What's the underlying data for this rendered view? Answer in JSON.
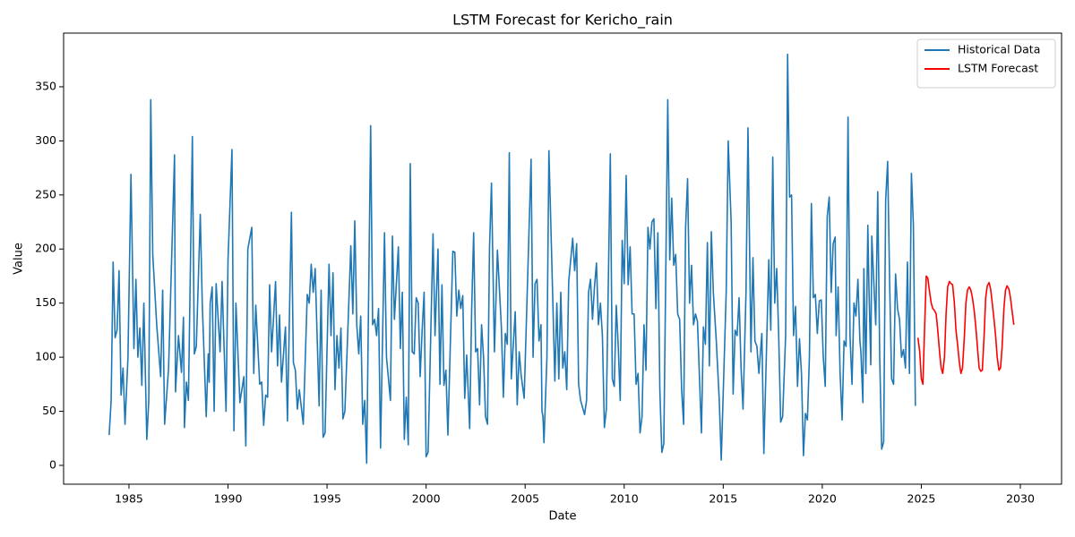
{
  "chart_data": {
    "type": "line",
    "title": "LSTM Forecast for Kericho_rain",
    "x_label": "Date",
    "y_label": "Value",
    "xlim": [
      1981.7,
      2032.08
    ],
    "ylim": [
      -17.4,
      399.6
    ],
    "xticks": [
      1985,
      1990,
      1995,
      2000,
      2005,
      2010,
      2015,
      2020,
      2025,
      2030
    ],
    "yticks": [
      0,
      50,
      100,
      150,
      200,
      250,
      300,
      350
    ],
    "grid": false,
    "legend": "upper right",
    "series": [
      {
        "name": "Historical Data",
        "color": "#1f77b4",
        "x": [
          1984.0,
          1984.1,
          1984.2,
          1984.3,
          1984.4,
          1984.5,
          1984.6,
          1984.7,
          1984.8,
          1984.95,
          1985.1,
          1985.25,
          1985.35,
          1985.45,
          1985.55,
          1985.65,
          1985.75,
          1985.9,
          1986.0,
          1986.1,
          1986.2,
          1986.4,
          1986.6,
          1986.7,
          1986.8,
          1987.0,
          1987.3,
          1987.35,
          1987.5,
          1987.65,
          1987.75,
          1987.8,
          1987.9,
          1988.0,
          1988.2,
          1988.3,
          1988.4,
          1988.6,
          1988.7,
          1988.9,
          1989.0,
          1989.05,
          1989.1,
          1989.2,
          1989.3,
          1989.4,
          1989.6,
          1989.7,
          1989.9,
          1990.0,
          1990.2,
          1990.3,
          1990.4,
          1990.6,
          1990.8,
          1990.9,
          1991.0,
          1991.2,
          1991.3,
          1991.4,
          1991.6,
          1991.7,
          1991.8,
          1991.9,
          1992.0,
          1992.1,
          1992.2,
          1992.4,
          1992.5,
          1992.6,
          1992.7,
          1992.9,
          1993.0,
          1993.2,
          1993.3,
          1993.4,
          1993.5,
          1993.6,
          1993.8,
          1994.0,
          1994.1,
          1994.2,
          1994.3,
          1994.4,
          1994.6,
          1994.7,
          1994.8,
          1994.9,
          1995.1,
          1995.2,
          1995.3,
          1995.4,
          1995.5,
          1995.6,
          1995.7,
          1995.8,
          1995.9,
          1996.0,
          1996.2,
          1996.3,
          1996.4,
          1996.5,
          1996.6,
          1996.7,
          1996.8,
          1996.9,
          1997.0,
          1997.2,
          1997.3,
          1997.4,
          1997.5,
          1997.6,
          1997.7,
          1997.9,
          1998.0,
          1998.2,
          1998.3,
          1998.4,
          1998.6,
          1998.7,
          1998.8,
          1998.9,
          1999.0,
          1999.1,
          1999.2,
          1999.3,
          1999.4,
          1999.5,
          1999.6,
          1999.7,
          1999.8,
          1999.9,
          2000.0,
          2000.1,
          2000.35,
          2000.45,
          2000.6,
          2000.7,
          2000.8,
          2000.9,
          2001.0,
          2001.1,
          2001.35,
          2001.45,
          2001.55,
          2001.65,
          2001.75,
          2001.85,
          2001.95,
          2002.05,
          2002.2,
          2002.3,
          2002.4,
          2002.5,
          2002.6,
          2002.7,
          2002.8,
          2002.9,
          2003.0,
          2003.1,
          2003.2,
          2003.3,
          2003.45,
          2003.6,
          2003.8,
          2003.9,
          2004.0,
          2004.1,
          2004.2,
          2004.3,
          2004.5,
          2004.6,
          2004.7,
          2004.8,
          2004.95,
          2005.3,
          2005.4,
          2005.5,
          2005.6,
          2005.7,
          2005.8,
          2005.85,
          2005.9,
          2005.95,
          2006.1,
          2006.2,
          2006.4,
          2006.5,
          2006.6,
          2006.7,
          2006.8,
          2006.9,
          2007.0,
          2007.1,
          2007.2,
          2007.4,
          2007.5,
          2007.6,
          2007.7,
          2007.8,
          2008.0,
          2008.1,
          2008.2,
          2008.3,
          2008.4,
          2008.5,
          2008.6,
          2008.7,
          2008.8,
          2008.9,
          2009.0,
          2009.1,
          2009.3,
          2009.4,
          2009.5,
          2009.6,
          2009.7,
          2009.8,
          2009.9,
          2010.0,
          2010.1,
          2010.2,
          2010.3,
          2010.4,
          2010.5,
          2010.6,
          2010.7,
          2010.8,
          2010.9,
          2011.0,
          2011.1,
          2011.2,
          2011.3,
          2011.4,
          2011.5,
          2011.6,
          2011.7,
          2011.8,
          2011.9,
          2012.0,
          2012.2,
          2012.3,
          2012.4,
          2012.5,
          2012.6,
          2012.7,
          2012.8,
          2012.9,
          2013.0,
          2013.1,
          2013.2,
          2013.3,
          2013.4,
          2013.5,
          2013.6,
          2013.7,
          2013.9,
          2014.0,
          2014.1,
          2014.2,
          2014.3,
          2014.4,
          2014.5,
          2014.65,
          2014.8,
          2014.9,
          2015.15,
          2015.25,
          2015.4,
          2015.5,
          2015.6,
          2015.7,
          2015.8,
          2015.9,
          2016.0,
          2016.15,
          2016.25,
          2016.4,
          2016.5,
          2016.6,
          2016.7,
          2016.8,
          2016.95,
          2017.05,
          2017.3,
          2017.4,
          2017.5,
          2017.6,
          2017.7,
          2017.8,
          2017.9,
          2018.0,
          2018.15,
          2018.25,
          2018.35,
          2018.45,
          2018.55,
          2018.65,
          2018.75,
          2018.85,
          2018.95,
          2019.05,
          2019.15,
          2019.25,
          2019.35,
          2019.45,
          2019.55,
          2019.65,
          2019.75,
          2019.85,
          2019.95,
          2020.05,
          2020.15,
          2020.25,
          2020.35,
          2020.45,
          2020.55,
          2020.65,
          2020.7,
          2020.8,
          2020.9,
          2021.0,
          2021.1,
          2021.2,
          2021.3,
          2021.4,
          2021.5,
          2021.6,
          2021.7,
          2021.8,
          2021.9,
          2021.95,
          2022.05,
          2022.1,
          2022.2,
          2022.3,
          2022.35,
          2022.45,
          2022.5,
          2022.6,
          2022.7,
          2022.8,
          2022.9,
          2023.0,
          2023.1,
          2023.2,
          2023.3,
          2023.4,
          2023.5,
          2023.6,
          2023.7,
          2023.8,
          2023.9,
          2024.0,
          2024.1,
          2024.2,
          2024.3,
          2024.4,
          2024.5,
          2024.6,
          2024.7
        ],
        "values": [
          28,
          60,
          188,
          118,
          125,
          180,
          65,
          90,
          38,
          100,
          269,
          108,
          172,
          100,
          127,
          74,
          150,
          24,
          60,
          338,
          195,
          130,
          82,
          162,
          38,
          90,
          287,
          68,
          120,
          86,
          137,
          35,
          77,
          60,
          304,
          103,
          110,
          232,
          150,
          45,
          103,
          77,
          150,
          165,
          50,
          168,
          105,
          170,
          50,
          190,
          292,
          32,
          150,
          58,
          82,
          18,
          200,
          220,
          85,
          148,
          75,
          77,
          37,
          65,
          63,
          167,
          105,
          170,
          92,
          139,
          77,
          128,
          41,
          234,
          95,
          88,
          52,
          70,
          38,
          158,
          150,
          186,
          160,
          182,
          55,
          162,
          26,
          30,
          186,
          120,
          178,
          70,
          120,
          90,
          127,
          43,
          50,
          100,
          203,
          140,
          226,
          130,
          103,
          138,
          38,
          60,
          2,
          314,
          130,
          135,
          120,
          145,
          16,
          215,
          100,
          60,
          212,
          135,
          202,
          108,
          160,
          24,
          63,
          19,
          279,
          105,
          103,
          155,
          150,
          82,
          125,
          160,
          8,
          12,
          214,
          120,
          200,
          75,
          167,
          74,
          88,
          28,
          198,
          197,
          138,
          162,
          145,
          157,
          62,
          102,
          34,
          144,
          215,
          105,
          108,
          56,
          130,
          100,
          45,
          38,
          200,
          261,
          105,
          199,
          128,
          63,
          122,
          112,
          289,
          80,
          142,
          56,
          105,
          83,
          62,
          283,
          100,
          168,
          172,
          115,
          130,
          50,
          45,
          21,
          100,
          291,
          150,
          78,
          150,
          80,
          160,
          90,
          105,
          70,
          170,
          210,
          180,
          205,
          75,
          60,
          47,
          60,
          160,
          172,
          135,
          165,
          187,
          130,
          150,
          120,
          35,
          52,
          288,
          80,
          73,
          148,
          110,
          60,
          208,
          168,
          268,
          167,
          202,
          140,
          140,
          75,
          85,
          30,
          45,
          130,
          88,
          220,
          200,
          225,
          228,
          145,
          215,
          70,
          12,
          20,
          338,
          190,
          247,
          185,
          195,
          140,
          135,
          70,
          38,
          220,
          265,
          150,
          185,
          130,
          140,
          133,
          30,
          128,
          112,
          206,
          92,
          216,
          160,
          115,
          60,
          5,
          160,
          300,
          225,
          66,
          125,
          120,
          155,
          90,
          52,
          160,
          312,
          105,
          192,
          115,
          110,
          85,
          122,
          11,
          190,
          125,
          285,
          150,
          182,
          120,
          40,
          45,
          120,
          380,
          248,
          250,
          120,
          147,
          73,
          117,
          85,
          9,
          48,
          42,
          100,
          242,
          155,
          158,
          122,
          152,
          153,
          100,
          73,
          230,
          248,
          160,
          205,
          211,
          120,
          165,
          85,
          42,
          115,
          110,
          322,
          120,
          75,
          150,
          138,
          172,
          115,
          105,
          58,
          182,
          85,
          222,
          170,
          93,
          212,
          170,
          130,
          253,
          100,
          15,
          22,
          245,
          281,
          170,
          80,
          75,
          177,
          145,
          135,
          100,
          107,
          90,
          188,
          85,
          270,
          222,
          55
        ]
      },
      {
        "name": "LSTM Forecast",
        "color": "#ff0000",
        "x": [
          2024.83,
          2024.92,
          2025.0,
          2025.08,
          2025.17,
          2025.25,
          2025.33,
          2025.42,
          2025.5,
          2025.58,
          2025.67,
          2025.75,
          2025.83,
          2025.92,
          2026.0,
          2026.08,
          2026.17,
          2026.25,
          2026.33,
          2026.42,
          2026.5,
          2026.58,
          2026.67,
          2026.75,
          2026.83,
          2026.92,
          2027.0,
          2027.08,
          2027.17,
          2027.25,
          2027.33,
          2027.42,
          2027.5,
          2027.58,
          2027.67,
          2027.75,
          2027.83,
          2027.92,
          2028.0,
          2028.08,
          2028.17,
          2028.25,
          2028.33,
          2028.42,
          2028.5,
          2028.58,
          2028.67,
          2028.75,
          2028.83,
          2028.92,
          2029.0,
          2029.08,
          2029.17,
          2029.25,
          2029.33,
          2029.42,
          2029.5,
          2029.58,
          2029.67
        ],
        "values": [
          118,
          105,
          80,
          75,
          130,
          175,
          173,
          160,
          150,
          145,
          143,
          140,
          125,
          105,
          90,
          85,
          100,
          140,
          165,
          170,
          168,
          167,
          150,
          125,
          112,
          95,
          85,
          90,
          118,
          150,
          162,
          165,
          162,
          155,
          143,
          128,
          110,
          90,
          87,
          88,
          120,
          155,
          166,
          169,
          163,
          150,
          135,
          120,
          100,
          88,
          90,
          110,
          145,
          162,
          166,
          163,
          155,
          143,
          130
        ]
      }
    ]
  }
}
